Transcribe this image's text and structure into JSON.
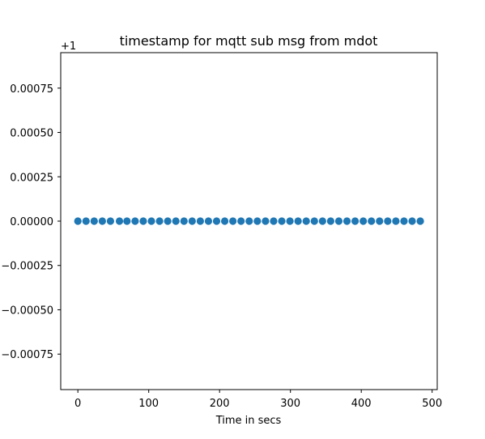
{
  "chart_data": {
    "type": "scatter",
    "title": "timestamp for mqtt sub msg from mdot",
    "xlabel": "Time in secs",
    "ylabel": "",
    "y_offset_label": "+1",
    "xlim": [
      -24.2,
      507.2
    ],
    "ylim": [
      -0.00095,
      0.00095
    ],
    "x_ticks": [
      0,
      100,
      200,
      300,
      400,
      500
    ],
    "y_ticks": [
      0.00075,
      0.0005,
      0.00025,
      0.0,
      -0.00025,
      -0.0005,
      -0.00075
    ],
    "y_tick_labels": [
      "0.00075",
      "0.00050",
      "0.00025",
      "0.00000",
      "−0.00025",
      "−0.00050",
      "−0.00075"
    ],
    "grid": false,
    "legend": "none",
    "colors": {
      "marker": "#1f77b4",
      "axes": "#000000"
    },
    "series": [
      {
        "x": [
          0,
          11.5,
          23,
          34.5,
          46,
          58.7,
          69.3,
          80.8,
          92.3,
          103.8,
          115.3,
          126.8,
          138.3,
          149.8,
          161.3,
          172.8,
          184.3,
          195.8,
          207.3,
          218.8,
          230.3,
          241.8,
          253.3,
          264.8,
          276.3,
          287.8,
          299.3,
          310.8,
          322.3,
          333.8,
          345.3,
          356.8,
          368.3,
          379.8,
          391.3,
          402.8,
          414.3,
          425.8,
          437.3,
          448.8,
          460.3,
          471.8,
          483.3
        ],
        "y": [
          0,
          0,
          0,
          0,
          0,
          0,
          0,
          0,
          0,
          0,
          0,
          0,
          0,
          0,
          0,
          0,
          0,
          0,
          0,
          0,
          0,
          0,
          0,
          0,
          0,
          0,
          0,
          0,
          0,
          0,
          0,
          0,
          0,
          0,
          0,
          0,
          0,
          0,
          0,
          0,
          0,
          0,
          0
        ]
      }
    ]
  }
}
